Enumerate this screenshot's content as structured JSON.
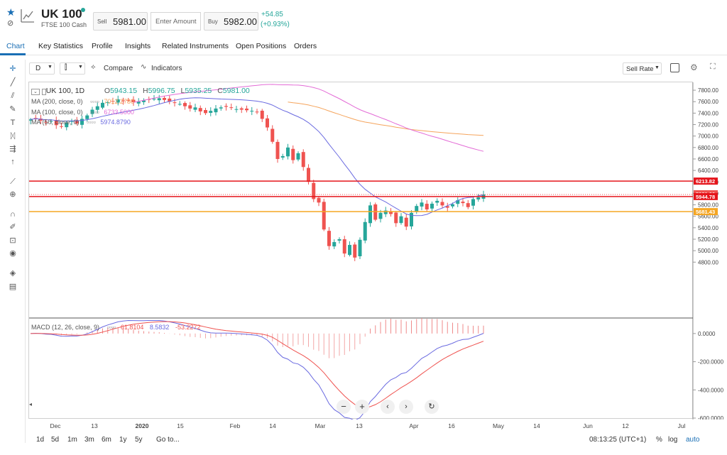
{
  "instrument": {
    "name": "UK 100",
    "subtitle": "FTSE 100 Cash",
    "sell_label": "Sell",
    "sell_price": "5981.00",
    "amount_placeholder": "Enter Amount",
    "buy_label": "Buy",
    "buy_price": "5982.00",
    "change": "+54.85",
    "change_pct": "(+0.93%)"
  },
  "tabs": [
    "Chart",
    "Key Statistics",
    "Profile",
    "Insights",
    "Related Instruments",
    "Open Positions",
    "Orders"
  ],
  "toolbar": {
    "interval": "D",
    "compare_label": "Compare",
    "indicators_label": "Indicators",
    "sell_rate_label": "Sell Rate"
  },
  "legend": {
    "symbol": "UK 100, 1D",
    "o_label": "O",
    "o": "5943.15",
    "h_label": "H",
    "h": "5996.75",
    "l_label": "L",
    "l": "5935.25",
    "c_label": "C",
    "c": "5981.00",
    "ma200_label": "MA (200, close, 0)",
    "ma200_value": "7012.2780",
    "ma100_label": "MA (100, close, 0)",
    "ma100_value": "6733.5000",
    "ma50_label": "MA (50, close, 0)",
    "ma50_value": "5974.8790",
    "macd_label": "MACD (12, 26, close, 9)",
    "macd_hist": "61.8104",
    "macd_line": "8.5832",
    "macd_signal": "-53.2272"
  },
  "bottom": {
    "ranges": [
      "1d",
      "5d",
      "1m",
      "3m",
      "6m",
      "1y",
      "5y",
      "Go to..."
    ],
    "time": "08:13:25 (UTC+1)",
    "pct": "%",
    "log": "log",
    "auto": "auto"
  },
  "colors": {
    "up": "#26a69a",
    "down": "#ef5350",
    "ma50": "#6a6ae0",
    "ma100": "#e36bd6",
    "ma200": "#f5a45c",
    "accent": "#1a6fb5",
    "hline_red": "#e5141b",
    "hline_orange": "#f5a623"
  },
  "chart_data": [
    {
      "type": "candlestick",
      "title": "UK 100, 1D",
      "ylim": [
        3850,
        7900
      ],
      "y_ticks": [
        7800,
        7600,
        7400,
        7200,
        7000,
        6800,
        6600,
        6400,
        6200,
        6000,
        5800,
        5600,
        5400,
        5200,
        5000,
        4800
      ],
      "x_ticks": [
        "Dec",
        "13",
        "2020",
        "15",
        "Feb",
        "14",
        "Mar",
        "13",
        "Apr",
        "16",
        "May",
        "14",
        "Jun",
        "12",
        "Jul"
      ],
      "series": [
        {
          "name": "MA (50, close, 0)",
          "values": [
            5974.879
          ]
        },
        {
          "name": "MA (100, close, 0)",
          "values": [
            6733.5
          ]
        },
        {
          "name": "MA (200, close, 0)",
          "values": [
            7012.278
          ]
        }
      ],
      "price_lines": [
        {
          "label": "6213.82",
          "value": 6213.82,
          "color": "#e5141b"
        },
        {
          "label": "5981.00",
          "value": 5981.0,
          "color": "#ef5350"
        },
        {
          "label": "5944.78",
          "value": 5944.78,
          "color": "#e5141b"
        },
        {
          "label": "5681.43",
          "value": 5681.43,
          "color": "#f5a623"
        }
      ],
      "closes": [
        7290,
        7310,
        7270,
        7240,
        7260,
        7190,
        7170,
        7230,
        7260,
        7220,
        7300,
        7360,
        7460,
        7520,
        7580,
        7590,
        7600,
        7640,
        7610,
        7620,
        7590,
        7600,
        7620,
        7640,
        7650,
        7660,
        7630,
        7600,
        7580,
        7560,
        7520,
        7480,
        7500,
        7430,
        7400,
        7440,
        7480,
        7500,
        7510,
        7490,
        7470,
        7460,
        7450,
        7440,
        7420,
        7300,
        7150,
        6900,
        6600,
        6650,
        6800,
        6580,
        6700,
        6460,
        6200,
        5900,
        5840,
        5370,
        5080,
        5150,
        5200,
        4950,
        5100,
        4880,
        5190,
        5500,
        5790,
        5540,
        5660,
        5700,
        5640,
        5480,
        5600,
        5420,
        5660,
        5780,
        5840,
        5720,
        5820,
        5870,
        5790,
        5750,
        5810,
        5880,
        5830,
        5760,
        5900,
        5930,
        5981
      ]
    },
    {
      "type": "macd",
      "title": "MACD (12, 26, close, 9)",
      "ylim": [
        -600,
        100
      ],
      "y_ticks": [
        0,
        -200,
        -400,
        -600
      ]
    }
  ]
}
